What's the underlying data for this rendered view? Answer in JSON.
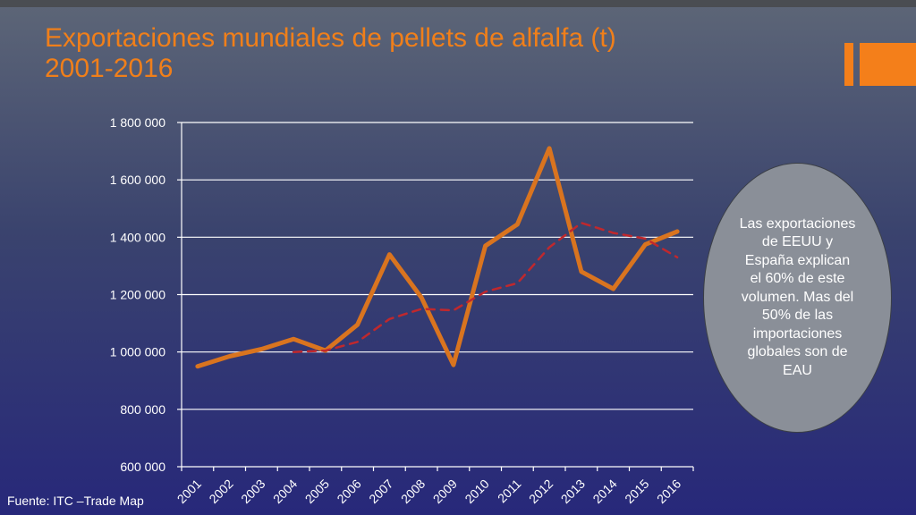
{
  "title": {
    "line1": "Exportaciones mundiales de pellets de alfalfa (t)",
    "line2": "2001-2016"
  },
  "note": "Las exportaciones de EEUU y España explican el 60% de este volumen. Mas del 50% de las importaciones globales son de EAU",
  "source": "Fuente: ITC –Trade Map",
  "colors": {
    "title": "#f07f1a",
    "series": "#d9741f",
    "trend": "#c0282d",
    "accent": "#f47f1a"
  },
  "chart_data": {
    "type": "line",
    "categories": [
      "2001",
      "2002",
      "2003",
      "2004",
      "2005",
      "2006",
      "2007",
      "2008",
      "2009",
      "2010",
      "2011",
      "2012",
      "2013",
      "2014",
      "2015",
      "2016"
    ],
    "ylim": [
      600000,
      1800000
    ],
    "yticks": [
      600000,
      800000,
      1000000,
      1200000,
      1400000,
      1600000,
      1800000
    ],
    "ytick_labels": [
      "600 000",
      "800 000",
      "1 000 000",
      "1 200 000",
      "1 400 000",
      "1 600 000",
      "1 800 000"
    ],
    "grid": true,
    "series": [
      {
        "style": "solid",
        "values": [
          950000,
          985000,
          1010000,
          1045000,
          1005000,
          1095000,
          1340000,
          1190000,
          955000,
          1370000,
          1445000,
          1710000,
          1280000,
          1220000,
          1375000,
          1420000
        ]
      },
      {
        "style": "dashed",
        "values": [
          null,
          null,
          null,
          1000000,
          1005000,
          1035000,
          1115000,
          1150000,
          1145000,
          1210000,
          1240000,
          1365000,
          1450000,
          1415000,
          1395000,
          1330000
        ]
      }
    ]
  }
}
